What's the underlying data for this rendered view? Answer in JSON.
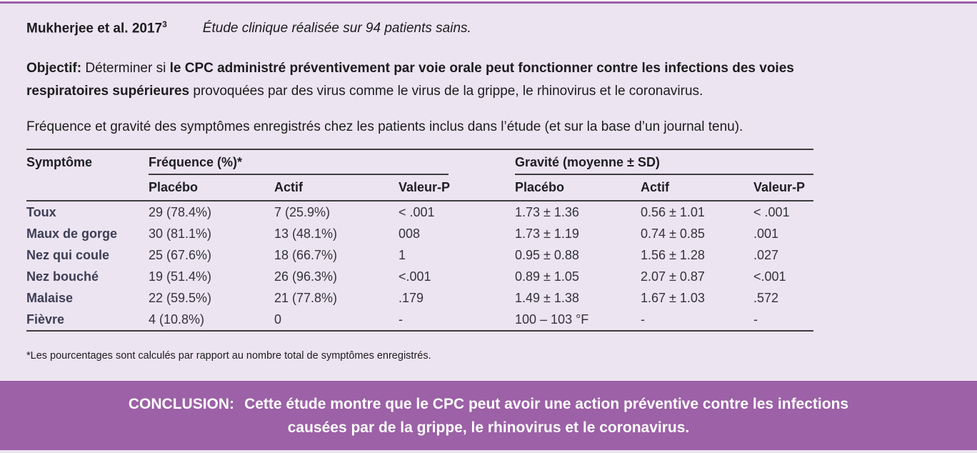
{
  "page": {
    "background_color": "#ECE4F1",
    "accent_purple": "#9C61A6",
    "row_label_color": "#3E3E56"
  },
  "header": {
    "study_ref": "Mukherjee et al. 2017",
    "ref_mark": "3",
    "study_desc": "Étude clinique réalisée sur 94 patients sains."
  },
  "objective": {
    "label": "Objectif:",
    "t1": " Déterminer si ",
    "bold_line1": "le CPC administré préventivement par voie orale peut fonctionner contre les infections des voies",
    "bold_line2": "respiratoires supérieures",
    "t3": " provoquées par des virus comme le virus de la grippe, le rhinovirus et le coronavirus."
  },
  "caption": "Fréquence et gravité des symptômes enregistrés chez les patients inclus dans l’étude (et sur la base d’un journal tenu).",
  "table": {
    "col_symptom": "Symptôme",
    "groups": [
      {
        "label": "Fréquence (%)*"
      },
      {
        "label": "Gravité (moyenne ± SD)"
      }
    ],
    "subheaders": [
      "Placébo",
      "Actif",
      "Valeur-P",
      "Placébo",
      "Actif",
      "Valeur-P"
    ],
    "rows": [
      {
        "symptom": "Toux",
        "cells": [
          "29 (78.4%)",
          "7 (25.9%)",
          "< .001",
          "1.73 ± 1.36",
          "0.56 ± 1.01",
          "< .001"
        ]
      },
      {
        "symptom": "Maux de gorge",
        "cells": [
          "30 (81.1%)",
          "13 (48.1%)",
          "008",
          "1.73 ± 1.19",
          "0.74 ± 0.85",
          ".001"
        ]
      },
      {
        "symptom": "Nez qui coule",
        "cells": [
          "25 (67.6%)",
          "18 (66.7%)",
          "1",
          "0.95 ± 0.88",
          "1.56 ± 1.28",
          ".027"
        ]
      },
      {
        "symptom": "Nez bouché",
        "cells": [
          "19 (51.4%)",
          "26 (96.3%)",
          "<.001",
          "0.89 ± 1.05",
          "2.07 ± 0.87",
          "<.001"
        ]
      },
      {
        "symptom": "Malaise",
        "cells": [
          "22 (59.5%)",
          "21 (77.8%)",
          ".179",
          "1.49 ± 1.38",
          "1.67 ± 1.03",
          ".572"
        ]
      },
      {
        "symptom": "Fièvre",
        "cells": [
          "4 (10.8%)",
          "0",
          "-",
          "100 – 103 °F",
          "-",
          "-"
        ]
      }
    ]
  },
  "footnote": "*Les pourcentages sont calculés par rapport au nombre total de symptômes enregistrés.",
  "conclusion": {
    "label": "CONCLUSION:",
    "line1": "Cette étude montre que le CPC peut avoir une action préventive contre les infections",
    "line2": "causées par de la grippe, le rhinovirus et le coronavirus."
  }
}
